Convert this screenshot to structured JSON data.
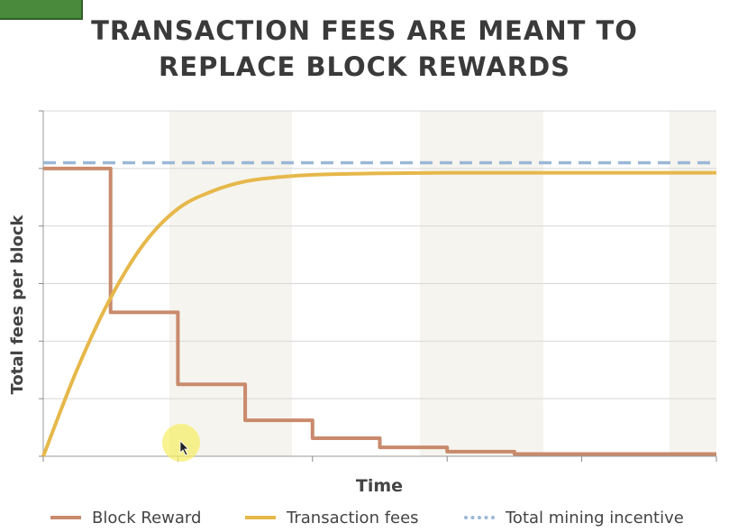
{
  "title_lines": [
    "TRANSACTION FEES ARE MEANT TO",
    "REPLACE BLOCK REWARDS"
  ],
  "colors": {
    "block_reward": "#c98a6c",
    "transaction_fees": "#e6b84a",
    "total_incentive": "#9ab8d6",
    "band": "#f6f4ef",
    "grid": "#d8d8d8",
    "green_tab": "#4a8a3c"
  },
  "chart_data": {
    "type": "line",
    "title": "TRANSACTION FEES ARE MEANT TO REPLACE BLOCK REWARDS",
    "xlabel": "Time",
    "ylabel": "Total fees per block",
    "xlim": [
      0,
      100
    ],
    "ylim": [
      0,
      120
    ],
    "grid": true,
    "legend_position": "bottom",
    "series": [
      {
        "name": "Block Reward",
        "style": "step",
        "x": [
          0,
          10,
          10,
          20,
          20,
          30,
          30,
          40,
          40,
          50,
          50,
          60,
          60,
          70,
          70,
          80,
          80,
          100
        ],
        "y": [
          100,
          100,
          50,
          50,
          25,
          25,
          12.5,
          12.5,
          6.25,
          6.25,
          3.1,
          3.1,
          1.6,
          1.6,
          0.8,
          0.8,
          0.8,
          0.8
        ]
      },
      {
        "name": "Transaction fees",
        "style": "smooth",
        "x": [
          0,
          5,
          10,
          15,
          20,
          25,
          30,
          35,
          40,
          50,
          60,
          70,
          80,
          90,
          100
        ],
        "y": [
          0,
          30,
          55,
          74,
          86,
          92,
          95.5,
          97,
          97.8,
          98.3,
          98.5,
          98.5,
          98.5,
          98.5,
          98.5
        ]
      },
      {
        "name": "Total mining incentive",
        "style": "dashed",
        "x": [
          0,
          100
        ],
        "y": [
          102,
          102
        ]
      }
    ]
  }
}
